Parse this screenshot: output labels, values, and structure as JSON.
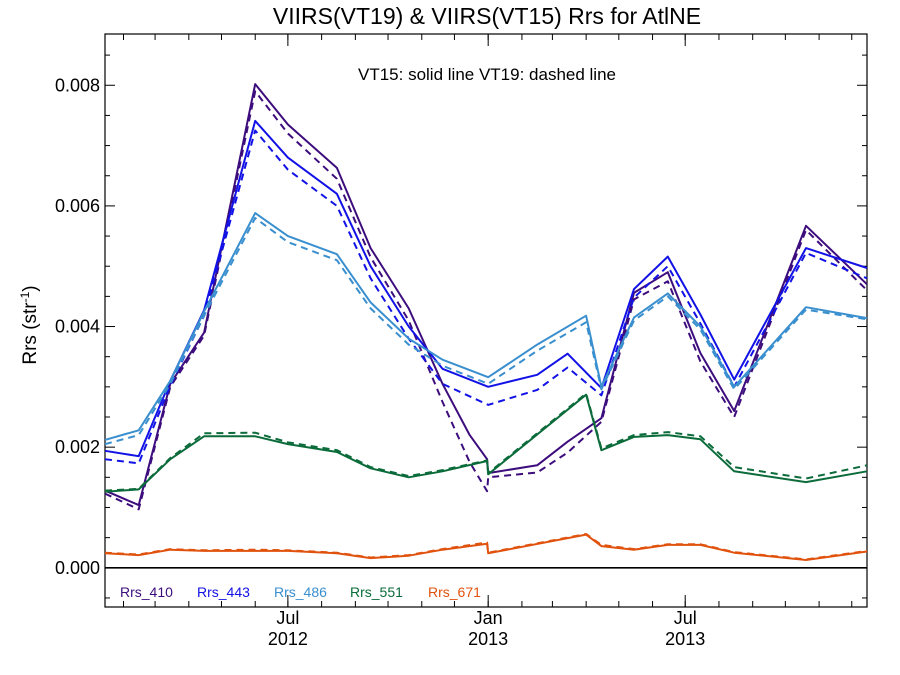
{
  "chart_data": {
    "type": "line",
    "title": "VIIRS(VT19) & VIIRS(VT15)  Rrs for AtlNE",
    "annotation": "VT15: solid line   VT19: dashed line",
    "ylabel": "Rrs (str",
    "ylabel_superscript": "-1",
    "ylabel_suffix": ")",
    "ylim": [
      -0.00065,
      0.00885
    ],
    "yticks": [
      0.0,
      0.002,
      0.004,
      0.006,
      0.008
    ],
    "ytick_labels": [
      "0.000",
      "0.002",
      "0.004",
      "0.006",
      "0.008"
    ],
    "x_dates": [
      "2012-01-15",
      "2012-02-15",
      "2012-03-15",
      "2012-04-15",
      "2012-05-15",
      "2012-06-15",
      "2012-07-15",
      "2012-08-15",
      "2012-09-15",
      "2012-10-15",
      "2012-11-15",
      "2012-12-15",
      "2012-12-31",
      "2013-01-15",
      "2013-02-15",
      "2013-03-15",
      "2013-04-15",
      "2013-05-15",
      "2013-06-15",
      "2013-07-15",
      "2013-08-15",
      "2013-09-15",
      "2013-10-15",
      "2013-11-15",
      "2013-12-15"
    ],
    "xlim": [
      "2012-01-15",
      "2013-12-15"
    ],
    "xticks": [
      {
        "date": "2012-07-01",
        "month": "Jul",
        "year": "2012"
      },
      {
        "date": "2013-01-01",
        "month": "Jan",
        "year": "2013"
      },
      {
        "date": "2013-07-01",
        "month": "Jul",
        "year": "2013"
      }
    ],
    "series": [
      {
        "name": "Rrs_410",
        "color": "#3d0d7d",
        "solid": [
          0.00128,
          0.00104,
          0.00305,
          0.0039,
          0.00802,
          0.00735,
          0.00663,
          0.0053,
          0.0043,
          0.00305,
          0.0022,
          0.0018,
          0.00157,
          0.0017,
          0.00209,
          0.00248,
          0.00456,
          0.0049,
          0.00356,
          0.0026,
          0.00567,
          0.0047
        ],
        "dashed": [
          0.00123,
          0.00097,
          0.003,
          0.00385,
          0.0079,
          0.0072,
          0.00645,
          0.00515,
          0.0041,
          0.00275,
          0.00175,
          0.00127,
          0.0015,
          0.00158,
          0.00191,
          0.00242,
          0.00445,
          0.00475,
          0.00342,
          0.0025,
          0.0056,
          0.0046
        ]
      },
      {
        "name": "Rrs_443",
        "color": "#1212e6",
        "solid": [
          0.00194,
          0.00185,
          0.0031,
          0.00427,
          0.00741,
          0.0068,
          0.0062,
          0.005,
          0.004,
          0.0033,
          0.003,
          0.0032,
          0.00355,
          0.00298,
          0.00462,
          0.00516,
          0.0042,
          0.00312,
          0.0053,
          0.00497
        ],
        "dashed": [
          0.0018,
          0.00173,
          0.00302,
          0.00418,
          0.00725,
          0.0066,
          0.006,
          0.0048,
          0.0038,
          0.00305,
          0.0027,
          0.00295,
          0.00332,
          0.00286,
          0.00448,
          0.005,
          0.00405,
          0.003,
          0.00522,
          0.0048
        ]
      },
      {
        "name": "Rrs_486",
        "color": "#3a8fcf",
        "solid": [
          0.00212,
          0.00228,
          0.0031,
          0.00425,
          0.00588,
          0.0055,
          0.0052,
          0.0044,
          0.0038,
          0.00345,
          0.00316,
          0.0037,
          0.00418,
          0.003,
          0.00415,
          0.00455,
          0.004,
          0.003,
          0.00432,
          0.00414
        ],
        "dashed": [
          0.00205,
          0.0022,
          0.00305,
          0.00418,
          0.0058,
          0.0054,
          0.0051,
          0.0043,
          0.0037,
          0.00335,
          0.00305,
          0.0036,
          0.00407,
          0.00296,
          0.0041,
          0.0045,
          0.00395,
          0.00296,
          0.00428,
          0.00412
        ]
      },
      {
        "name": "Rrs_551",
        "color": "#0b6b3a",
        "solid": [
          0.00126,
          0.0013,
          0.0018,
          0.00218,
          0.00218,
          0.00205,
          0.00192,
          0.00165,
          0.0015,
          0.0016,
          0.00177,
          0.00155,
          0.00287,
          0.00195,
          0.00217,
          0.0022,
          0.00213,
          0.0016,
          0.00142,
          0.0016
        ],
        "dashed": [
          0.00128,
          0.00131,
          0.00182,
          0.00223,
          0.00224,
          0.00208,
          0.00195,
          0.00167,
          0.00152,
          0.00162,
          0.00178,
          0.00157,
          0.00289,
          0.00198,
          0.0022,
          0.00225,
          0.00218,
          0.00167,
          0.00148,
          0.0017
        ]
      },
      {
        "name": "Rrs_671",
        "color": "#e0520d",
        "solid": [
          0.00024,
          0.00021,
          0.0003,
          0.00028,
          0.00028,
          0.00028,
          0.00024,
          0.00016,
          0.0002,
          0.0003,
          0.0004,
          0.00024,
          0.00055,
          0.00036,
          0.0003,
          0.00038,
          0.00038,
          0.00025,
          0.00013,
          0.00027
        ],
        "dashed": [
          0.00025,
          0.00022,
          0.00031,
          0.00029,
          0.0003,
          0.00029,
          0.00025,
          0.00017,
          0.00021,
          0.00031,
          0.00042,
          0.00025,
          0.00056,
          0.00038,
          0.00031,
          0.00039,
          0.00039,
          0.00026,
          0.00014,
          0.00028
        ]
      }
    ],
    "series_dates": {
      "Rrs_410": [
        "2012-01-15",
        "2012-02-15",
        "2012-03-15",
        "2012-04-15",
        "2012-06-01",
        "2012-07-01",
        "2012-08-15",
        "2012-09-15",
        "2012-10-20",
        "2012-11-20",
        "2012-12-15",
        "2012-12-31",
        "2013-01-01",
        "2013-02-15",
        "2013-03-15",
        "2013-04-15",
        "2013-05-15",
        "2013-06-15",
        "2013-07-15",
        "2013-08-15",
        "2013-10-20",
        "2013-12-15"
      ],
      "Rrs_443": [
        "2012-01-15",
        "2012-02-15",
        "2012-03-15",
        "2012-04-15",
        "2012-06-01",
        "2012-07-01",
        "2012-08-15",
        "2012-09-15",
        "2012-10-20",
        "2012-11-20",
        "2013-01-01",
        "2013-02-15",
        "2013-03-15",
        "2013-04-15",
        "2013-05-15",
        "2013-06-15",
        "2013-07-15",
        "2013-08-15",
        "2013-10-20",
        "2013-12-15"
      ],
      "Rrs_486": [
        "2012-01-15",
        "2012-02-15",
        "2012-03-15",
        "2012-04-15",
        "2012-06-01",
        "2012-07-01",
        "2012-08-15",
        "2012-09-15",
        "2012-10-20",
        "2012-11-20",
        "2013-01-01",
        "2013-02-15",
        "2013-04-01",
        "2013-04-15",
        "2013-05-15",
        "2013-06-15",
        "2013-07-15",
        "2013-08-15",
        "2013-10-20",
        "2013-12-15"
      ],
      "Rrs_551": [
        "2012-01-15",
        "2012-02-15",
        "2012-03-15",
        "2012-04-15",
        "2012-06-01",
        "2012-07-01",
        "2012-08-15",
        "2012-09-15",
        "2012-10-20",
        "2012-11-20",
        "2012-12-31",
        "2013-01-01",
        "2013-04-01",
        "2013-04-15",
        "2013-05-15",
        "2013-06-15",
        "2013-07-15",
        "2013-08-15",
        "2013-10-20",
        "2013-12-15"
      ],
      "Rrs_671": [
        "2012-01-15",
        "2012-02-15",
        "2012-03-15",
        "2012-04-15",
        "2012-06-01",
        "2012-07-01",
        "2012-08-15",
        "2012-09-15",
        "2012-10-20",
        "2012-11-20",
        "2012-12-31",
        "2013-01-01",
        "2013-04-01",
        "2013-04-15",
        "2013-05-15",
        "2013-06-15",
        "2013-07-15",
        "2013-08-15",
        "2013-10-20",
        "2013-12-15"
      ]
    }
  }
}
